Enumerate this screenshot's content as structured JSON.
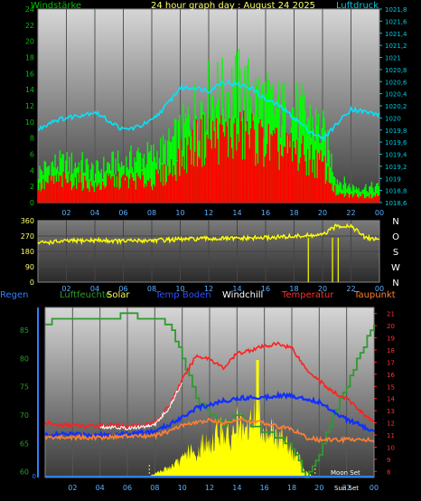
{
  "top": {
    "title": "24 hour graph day : August 24 2025",
    "left_label": "Windstärke",
    "right_label": "Luftdruck",
    "left_ticks": [
      "0",
      "2",
      "4",
      "6",
      "8",
      "10",
      "12",
      "14",
      "16",
      "18",
      "20",
      "22",
      "24"
    ],
    "right_ticks": [
      "1018,6",
      "1018,8",
      "1019",
      "1019,2",
      "1019,4",
      "1019,6",
      "1019,8",
      "1020",
      "1020,2",
      "1020,4",
      "1020,6",
      "1020,8",
      "1021",
      "1021,2",
      "1021,4",
      "1021,6",
      "1021,8"
    ],
    "x_ticks": [
      "02",
      "04",
      "06",
      "08",
      "10",
      "12",
      "14",
      "16",
      "18",
      "20",
      "22",
      "00"
    ]
  },
  "mid": {
    "left_ticks": [
      "0",
      "90",
      "180",
      "270",
      "360"
    ],
    "right_ticks": [
      "N",
      "W",
      "S",
      "O",
      "N"
    ],
    "x_ticks": [
      "02",
      "04",
      "06",
      "08",
      "10",
      "12",
      "14",
      "16",
      "18",
      "20",
      "22",
      "00"
    ]
  },
  "legend": [
    {
      "label": "Regen",
      "color": "#2f7fff"
    },
    {
      "label": "Luftfeuchte",
      "color": "#2e9a2e"
    },
    {
      "label": "Solar",
      "color": "#ffff55"
    },
    {
      "label": "Temp Boden",
      "color": "#3050ff"
    },
    {
      "label": "Windchill",
      "color": "#ffffff"
    },
    {
      "label": "Temperatur",
      "color": "#ff3030"
    },
    {
      "label": "Taupunkt",
      "color": "#ff8030"
    }
  ],
  "bottom": {
    "left_ticks": [
      "0",
      "60",
      "65",
      "70",
      "75",
      "80",
      "85"
    ],
    "right_ticks": [
      "8",
      "9",
      "10",
      "11",
      "12",
      "13",
      "14",
      "15",
      "16",
      "17",
      "18",
      "19",
      "20",
      "21"
    ],
    "x_ticks": [
      "02",
      "04",
      "06",
      "08",
      "10",
      "12",
      "14",
      "16",
      "18",
      "20",
      "22",
      "00"
    ],
    "annotations": [
      "Sun Set",
      "Moon Set"
    ]
  },
  "colors": {
    "wind_avg": "#00ff00",
    "wind_gust_low": "#ff0000",
    "pressure": "#00e5ff",
    "direction": "#ffff00",
    "humidity": "#2e9a2e",
    "solar": "#ffff00",
    "temp": "#ff2020",
    "dew": "#ff8030",
    "soil": "#1030ff",
    "windchill": "#ffffff"
  },
  "chart_data": [
    {
      "type": "bar",
      "title": "24 hour graph day : August 24 2025",
      "x_unit": "hour",
      "x_range": [
        0,
        24
      ],
      "series": [
        {
          "name": "Windstärke",
          "axis": "left",
          "ylim": [
            0,
            24
          ],
          "x": [
            0,
            1,
            2,
            3,
            4,
            5,
            6,
            7,
            8,
            9,
            10,
            11,
            12,
            13,
            14,
            15,
            16,
            17,
            18,
            19,
            20,
            21,
            22,
            23,
            24
          ],
          "gust": [
            4,
            5,
            5,
            5,
            4,
            5,
            5,
            6,
            6,
            7,
            9,
            12,
            14,
            14,
            15,
            14,
            13,
            12,
            12,
            11,
            9,
            3,
            2,
            2,
            2
          ],
          "avg": [
            2,
            3,
            3,
            3,
            2,
            3,
            3,
            3,
            3,
            4,
            6,
            8,
            9,
            9,
            9,
            9,
            8,
            7,
            7,
            6,
            5,
            1,
            1,
            1,
            1
          ]
        },
        {
          "name": "Luftdruck",
          "type": "line",
          "axis": "right",
          "ylim": [
            1018.6,
            1021.8
          ],
          "x": [
            0,
            1,
            2,
            3,
            4,
            5,
            6,
            7,
            8,
            9,
            10,
            11,
            12,
            13,
            14,
            15,
            16,
            17,
            18,
            19,
            20,
            21,
            22,
            23,
            24
          ],
          "values": [
            1019.8,
            1019.95,
            1020.0,
            1020.05,
            1020.1,
            1019.95,
            1019.8,
            1019.85,
            1019.95,
            1020.2,
            1020.5,
            1020.5,
            1020.45,
            1020.6,
            1020.55,
            1020.5,
            1020.3,
            1020.2,
            1020.0,
            1019.8,
            1019.65,
            1019.9,
            1020.15,
            1020.1,
            1020.05
          ]
        }
      ]
    },
    {
      "type": "line",
      "x_unit": "hour",
      "x_range": [
        0,
        24
      ],
      "ylim": [
        0,
        360
      ],
      "series": [
        {
          "name": "Windrichtung",
          "x": [
            0,
            2,
            4,
            6,
            8,
            10,
            12,
            14,
            16,
            18,
            19,
            20,
            21,
            22,
            23,
            24
          ],
          "values": [
            230,
            240,
            245,
            240,
            245,
            250,
            255,
            255,
            260,
            268,
            272,
            275,
            330,
            330,
            260,
            250
          ]
        }
      ]
    },
    {
      "type": "line",
      "x_unit": "hour",
      "x_range": [
        0,
        24
      ],
      "series": [
        {
          "name": "Luftfeuchte",
          "axis": "left",
          "ylim": [
            59,
            89
          ],
          "x": [
            0,
            1,
            2,
            3,
            4,
            5,
            6,
            7,
            8,
            9,
            10,
            11,
            12,
            13,
            14,
            15,
            16,
            17,
            18,
            19,
            20,
            21,
            22,
            23,
            24
          ],
          "values": [
            86,
            87,
            87,
            87,
            87,
            87,
            88,
            87,
            87,
            86,
            80,
            73,
            70,
            68,
            70,
            68,
            67,
            66,
            64,
            59,
            63,
            70,
            75,
            81,
            86
          ]
        },
        {
          "name": "Temperatur",
          "axis": "right",
          "ylim": [
            7.5,
            21.5
          ],
          "x": [
            0,
            1,
            2,
            3,
            4,
            5,
            6,
            7,
            8,
            9,
            10,
            11,
            12,
            13,
            14,
            15,
            16,
            17,
            18,
            19,
            20,
            21,
            22,
            23,
            24
          ],
          "values": [
            12.0,
            11.8,
            11.8,
            11.7,
            11.8,
            11.8,
            11.7,
            11.8,
            12.0,
            13.3,
            15.5,
            17.5,
            17.3,
            16.5,
            17.7,
            18.0,
            18.3,
            18.5,
            18.2,
            16.5,
            15.5,
            14.5,
            14.0,
            13.0,
            12.0
          ]
        },
        {
          "name": "Temp Boden",
          "axis": "right",
          "ylim": [
            7.5,
            21.5
          ],
          "x": [
            0,
            2,
            4,
            6,
            8,
            9,
            10,
            11,
            12,
            13,
            14,
            15,
            16,
            17,
            18,
            19,
            20,
            21,
            22,
            23,
            24
          ],
          "values": [
            11.0,
            11.1,
            11.0,
            11.1,
            11.3,
            11.8,
            12.5,
            13.2,
            13.5,
            13.8,
            14.0,
            14.1,
            14.1,
            14.3,
            14.2,
            14.0,
            13.7,
            13.0,
            12.3,
            11.8,
            11.2
          ]
        },
        {
          "name": "Taupunkt",
          "axis": "right",
          "ylim": [
            7.5,
            21.5
          ],
          "x": [
            0,
            2,
            4,
            6,
            8,
            9,
            10,
            11,
            12,
            13,
            14,
            15,
            16,
            17,
            18,
            19,
            20,
            21,
            22,
            23,
            24
          ],
          "values": [
            10.8,
            10.8,
            10.8,
            10.9,
            10.9,
            11.3,
            11.8,
            12.0,
            12.2,
            12.0,
            12.3,
            12.1,
            12.0,
            11.7,
            11.5,
            10.8,
            10.6,
            10.6,
            10.6,
            10.7,
            10.5
          ]
        },
        {
          "name": "Solar",
          "type": "area",
          "x": [
            0,
            7.5,
            8,
            9,
            10,
            10.5,
            11,
            11.5,
            12,
            12.5,
            13,
            13.5,
            14,
            14.5,
            15,
            15.5,
            16,
            16.5,
            17,
            17.5,
            18,
            18.5,
            19,
            19.5,
            24
          ],
          "values": [
            0,
            0,
            0.05,
            0.12,
            0.22,
            0.35,
            0.25,
            0.45,
            0.38,
            0.55,
            0.6,
            0.45,
            0.7,
            0.5,
            0.68,
            0.9,
            0.55,
            0.62,
            0.45,
            0.55,
            0.3,
            0.25,
            0.08,
            0.02,
            0
          ]
        }
      ]
    }
  ]
}
